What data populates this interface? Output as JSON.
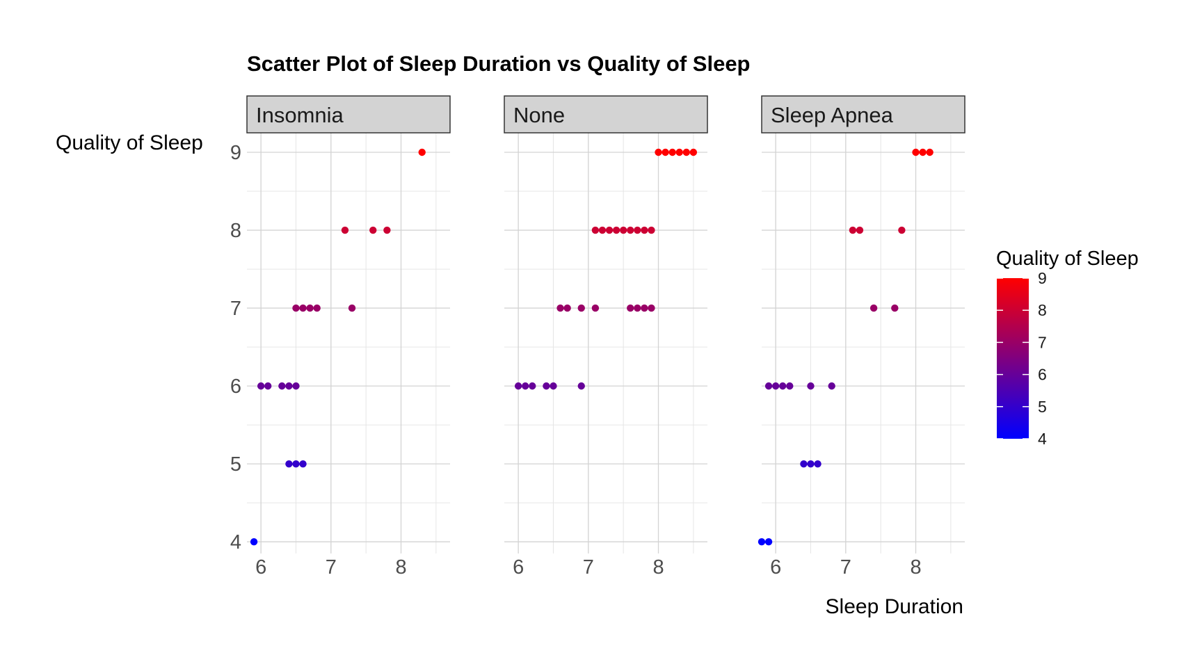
{
  "chart_data": {
    "type": "scatter",
    "title": "Scatter Plot of Sleep Duration vs Quality of Sleep",
    "xlabel": "Sleep Duration",
    "ylabel": "Quality of Sleep",
    "xlim": [
      5.8,
      8.7
    ],
    "ylim": [
      3.85,
      9.25
    ],
    "x_ticks": [
      6,
      7,
      8
    ],
    "y_ticks": [
      4,
      5,
      6,
      7,
      8,
      9
    ],
    "grid": true,
    "legend": {
      "title": "Quality of Sleep",
      "type": "colorbar",
      "placement": "right",
      "low_color": "#0000ff",
      "high_color": "#ff0000",
      "range": [
        4,
        9
      ],
      "ticks": [
        9,
        8,
        7,
        6,
        5,
        4
      ]
    },
    "facets": [
      {
        "label": "Insomnia",
        "points": [
          {
            "x": 5.9,
            "y": 4
          },
          {
            "x": 6.4,
            "y": 5
          },
          {
            "x": 6.5,
            "y": 5
          },
          {
            "x": 6.6,
            "y": 5
          },
          {
            "x": 6.0,
            "y": 6
          },
          {
            "x": 6.1,
            "y": 6
          },
          {
            "x": 6.3,
            "y": 6
          },
          {
            "x": 6.4,
            "y": 6
          },
          {
            "x": 6.5,
            "y": 6
          },
          {
            "x": 6.5,
            "y": 7
          },
          {
            "x": 6.6,
            "y": 7
          },
          {
            "x": 6.7,
            "y": 7
          },
          {
            "x": 6.8,
            "y": 7
          },
          {
            "x": 7.3,
            "y": 7
          },
          {
            "x": 7.2,
            "y": 8
          },
          {
            "x": 7.6,
            "y": 8
          },
          {
            "x": 7.8,
            "y": 8
          },
          {
            "x": 8.3,
            "y": 9
          }
        ]
      },
      {
        "label": "None",
        "points": [
          {
            "x": 6.0,
            "y": 6
          },
          {
            "x": 6.1,
            "y": 6
          },
          {
            "x": 6.2,
            "y": 6
          },
          {
            "x": 6.4,
            "y": 6
          },
          {
            "x": 6.5,
            "y": 6
          },
          {
            "x": 6.9,
            "y": 6
          },
          {
            "x": 6.6,
            "y": 7
          },
          {
            "x": 6.7,
            "y": 7
          },
          {
            "x": 6.9,
            "y": 7
          },
          {
            "x": 7.1,
            "y": 7
          },
          {
            "x": 7.6,
            "y": 7
          },
          {
            "x": 7.7,
            "y": 7
          },
          {
            "x": 7.8,
            "y": 7
          },
          {
            "x": 7.9,
            "y": 7
          },
          {
            "x": 7.1,
            "y": 8
          },
          {
            "x": 7.2,
            "y": 8
          },
          {
            "x": 7.3,
            "y": 8
          },
          {
            "x": 7.4,
            "y": 8
          },
          {
            "x": 7.5,
            "y": 8
          },
          {
            "x": 7.6,
            "y": 8
          },
          {
            "x": 7.7,
            "y": 8
          },
          {
            "x": 7.8,
            "y": 8
          },
          {
            "x": 7.9,
            "y": 8
          },
          {
            "x": 8.0,
            "y": 9
          },
          {
            "x": 8.1,
            "y": 9
          },
          {
            "x": 8.2,
            "y": 9
          },
          {
            "x": 8.3,
            "y": 9
          },
          {
            "x": 8.4,
            "y": 9
          },
          {
            "x": 8.5,
            "y": 9
          }
        ]
      },
      {
        "label": "Sleep Apnea",
        "points": [
          {
            "x": 5.8,
            "y": 4
          },
          {
            "x": 5.9,
            "y": 4
          },
          {
            "x": 6.4,
            "y": 5
          },
          {
            "x": 6.5,
            "y": 5
          },
          {
            "x": 6.6,
            "y": 5
          },
          {
            "x": 5.9,
            "y": 6
          },
          {
            "x": 6.0,
            "y": 6
          },
          {
            "x": 6.1,
            "y": 6
          },
          {
            "x": 6.2,
            "y": 6
          },
          {
            "x": 6.5,
            "y": 6
          },
          {
            "x": 6.8,
            "y": 6
          },
          {
            "x": 7.4,
            "y": 7
          },
          {
            "x": 7.7,
            "y": 7
          },
          {
            "x": 7.1,
            "y": 8
          },
          {
            "x": 7.2,
            "y": 8
          },
          {
            "x": 7.8,
            "y": 8
          },
          {
            "x": 8.0,
            "y": 9
          },
          {
            "x": 8.1,
            "y": 9
          },
          {
            "x": 8.2,
            "y": 9
          }
        ]
      }
    ]
  }
}
